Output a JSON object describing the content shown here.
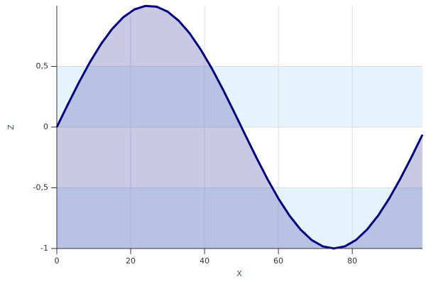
{
  "chart_data": {
    "type": "area",
    "x_label": "X",
    "y_label": "Z",
    "x": [
      0,
      3,
      6,
      9,
      12,
      15,
      18,
      21,
      24,
      27,
      30,
      33,
      36,
      39,
      42,
      45,
      48,
      51,
      54,
      57,
      60,
      63,
      66,
      69,
      72,
      75,
      78,
      81,
      84,
      87,
      90,
      93,
      96,
      99
    ],
    "values": [
      0,
      0.187,
      0.368,
      0.536,
      0.685,
      0.809,
      0.905,
      0.969,
      0.998,
      0.992,
      0.951,
      0.876,
      0.771,
      0.637,
      0.482,
      0.309,
      0.125,
      -0.063,
      -0.249,
      -0.426,
      -0.588,
      -0.729,
      -0.844,
      -0.93,
      -0.982,
      -1.0,
      -0.982,
      -0.93,
      -0.844,
      -0.729,
      -0.588,
      -0.426,
      -0.249,
      -0.063
    ],
    "xlim": [
      0,
      99
    ],
    "ylim": [
      -1,
      1
    ],
    "xticks": [
      0,
      20,
      40,
      60,
      80
    ],
    "yticks": [
      -1,
      {
        "value": -0.5,
        "label": "-0,5"
      },
      0,
      {
        "value": 0.5,
        "label": "0,5"
      }
    ],
    "line_color": "#000080",
    "fill_color": "#6565b8",
    "band_color": "#e5f4fc",
    "grid": true
  }
}
